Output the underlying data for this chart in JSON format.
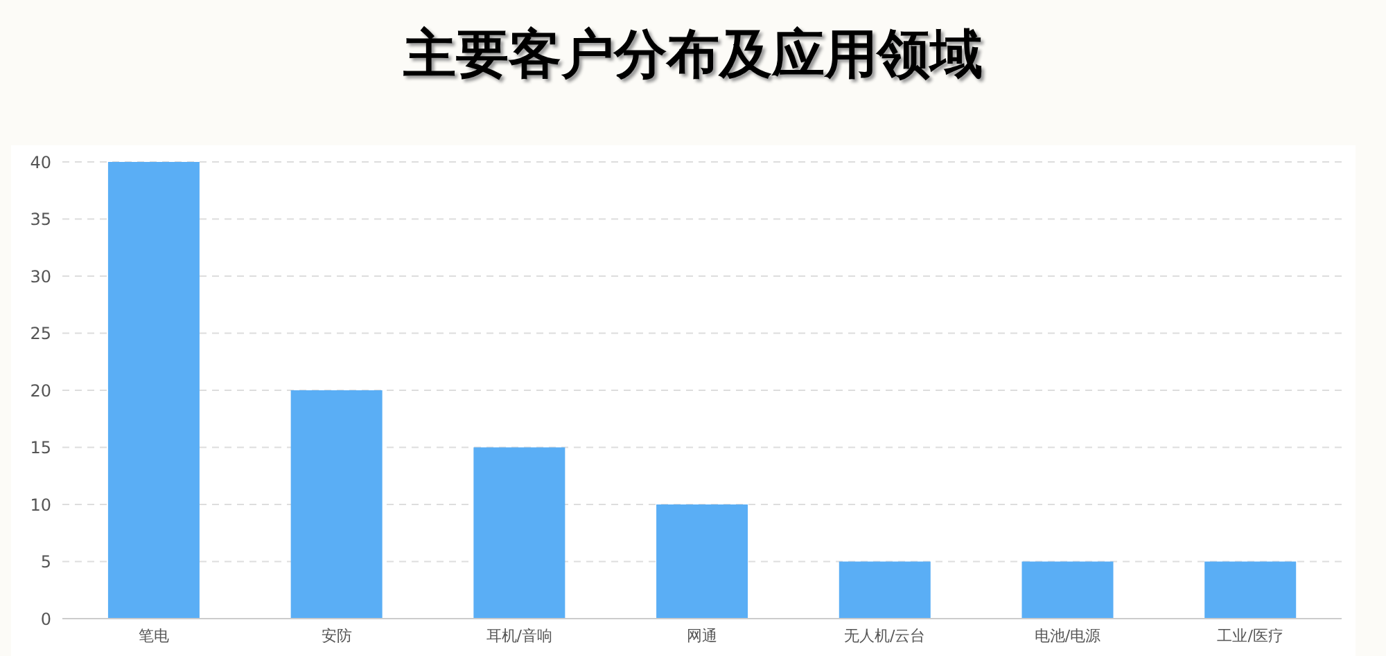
{
  "chart_data": {
    "type": "bar",
    "title": "主要客户分布及应用领域",
    "categories": [
      "笔电",
      "安防",
      "耳机/音响",
      "网通",
      "无人机/云台",
      "电池/电源",
      "工业/医疗"
    ],
    "values": [
      40,
      20,
      15,
      10,
      5,
      5,
      5
    ],
    "color": "#5aaef5",
    "ylim": [
      0,
      40
    ],
    "yticks": [
      0,
      5,
      10,
      15,
      20,
      25,
      30,
      35,
      40
    ],
    "grid": "y"
  }
}
